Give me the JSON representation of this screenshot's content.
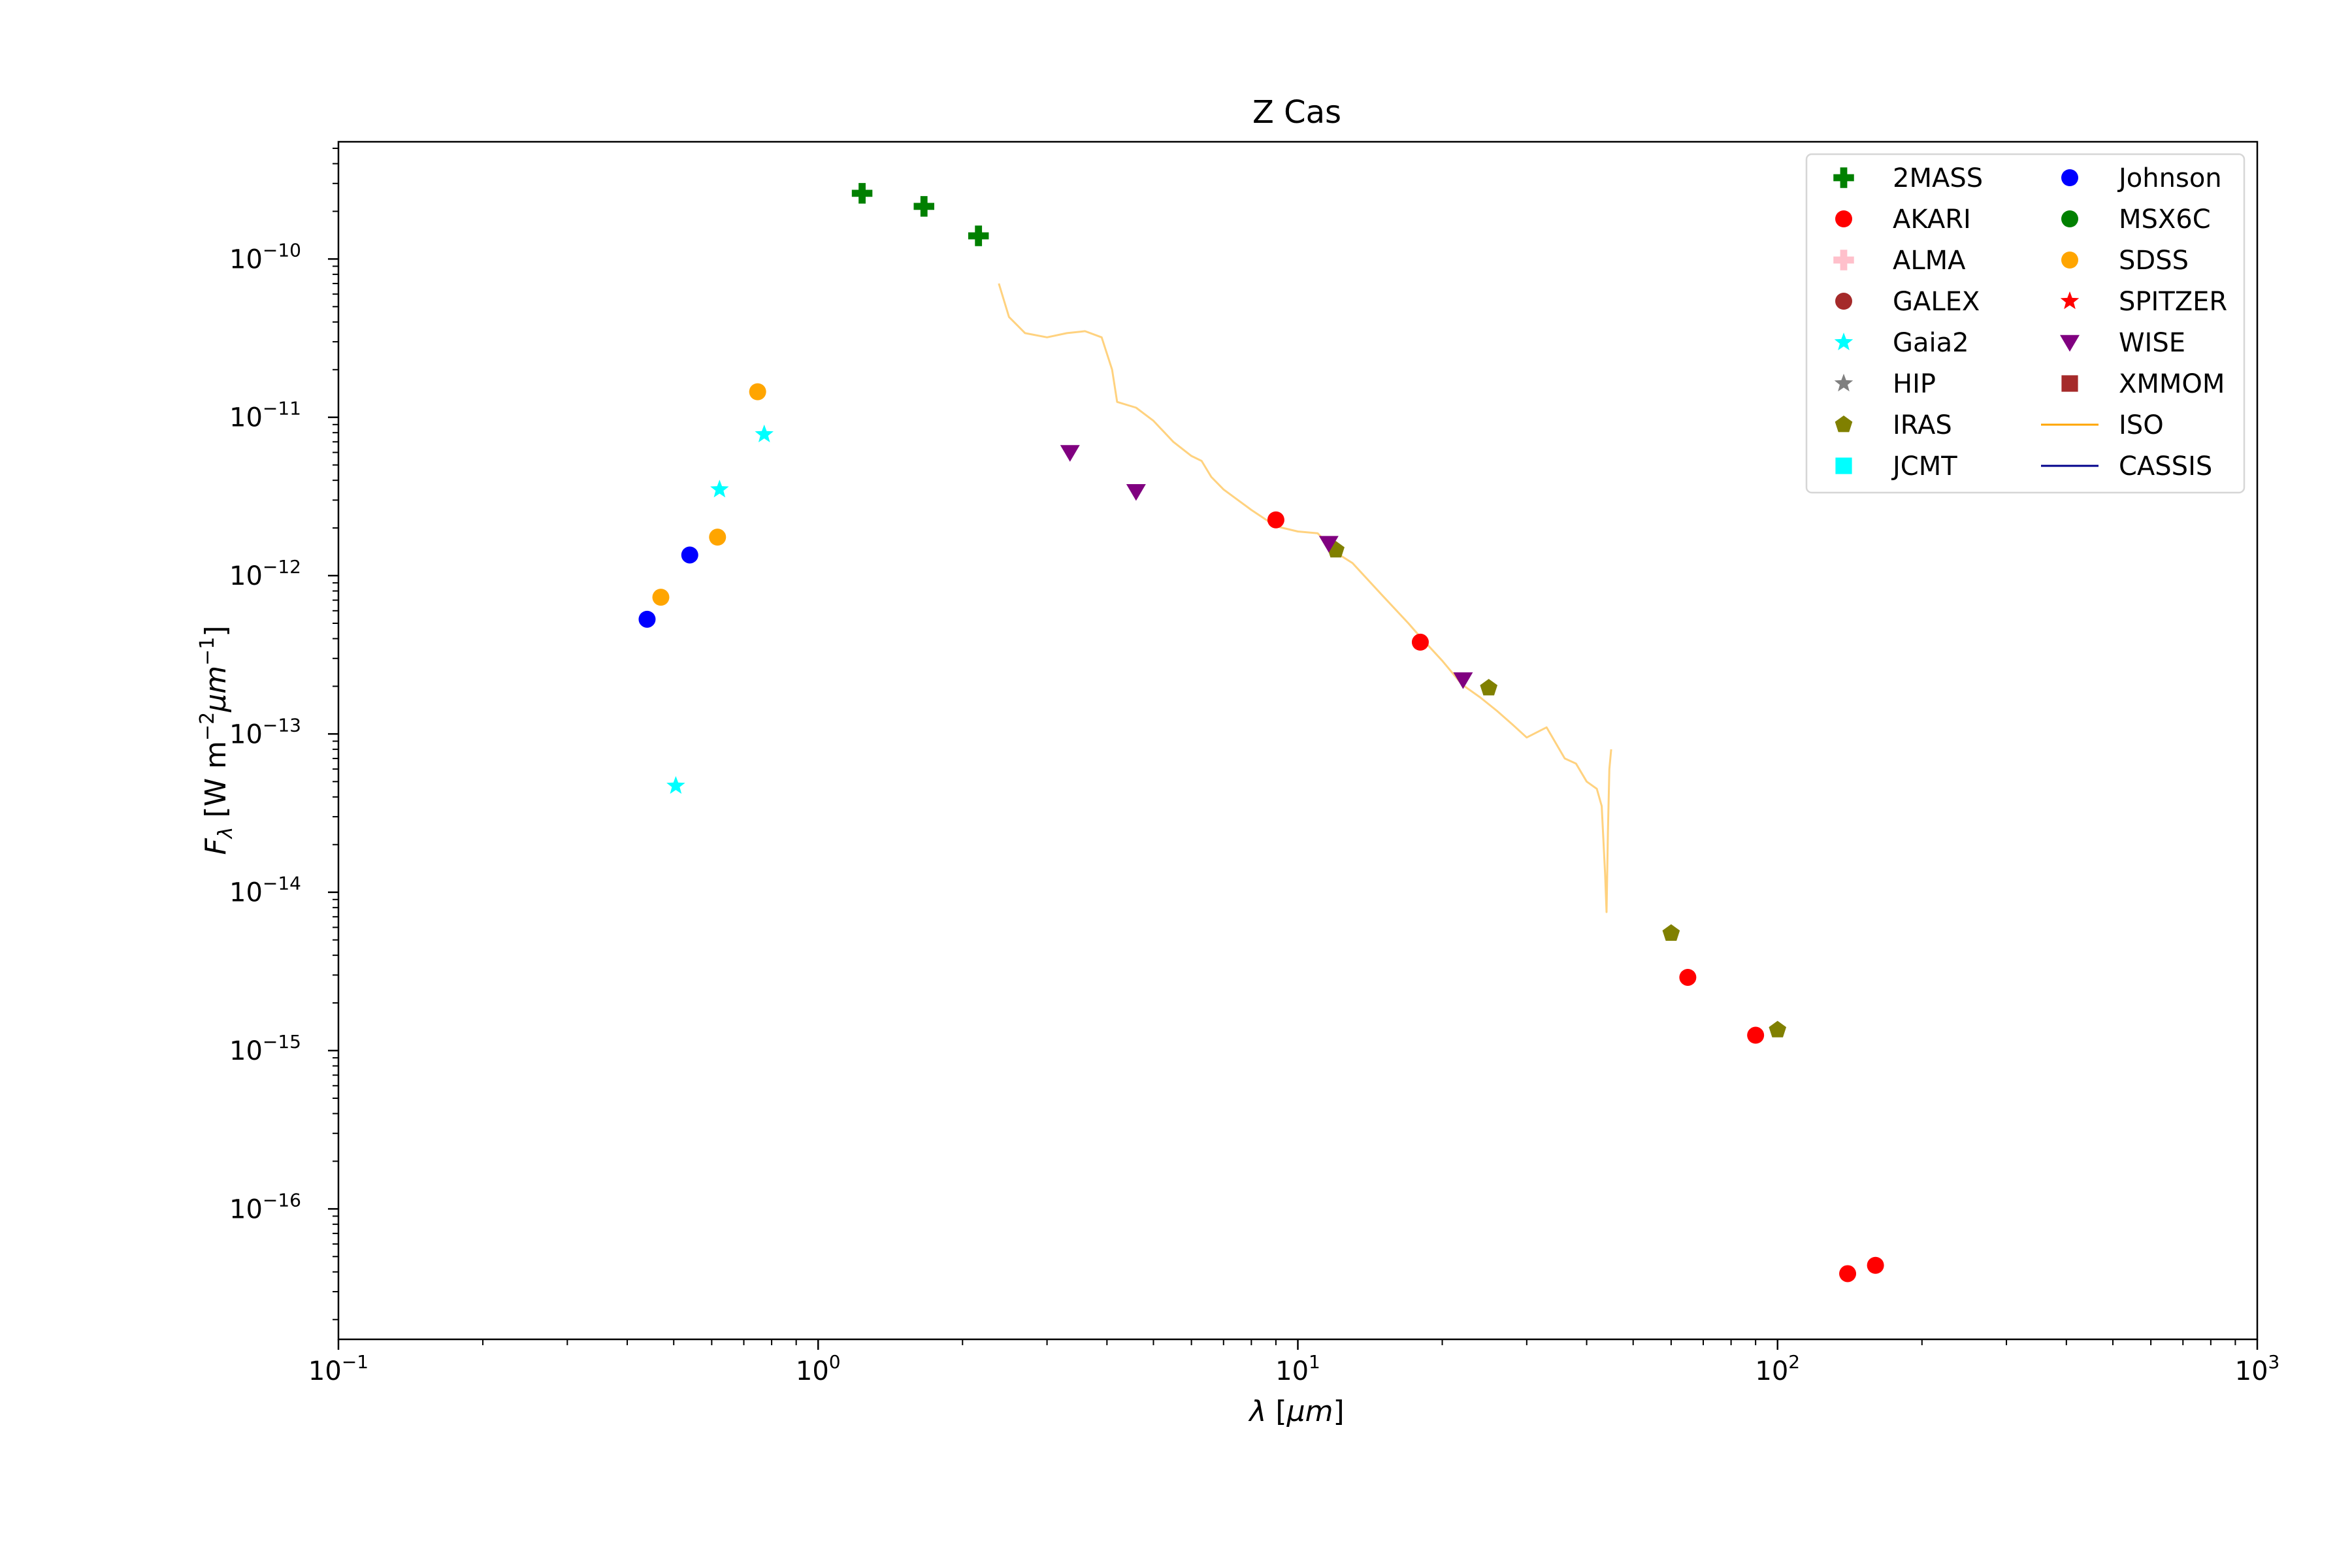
{
  "chart_data": {
    "type": "scatter",
    "title": "Z Cas",
    "xlabel": "λ [μm]",
    "ylabel": "F_λ [W m^-2 μm^-1]",
    "xscale": "log",
    "yscale": "log",
    "xlim": [
      0.1,
      1000
    ],
    "ylim": [
      1.5e-17,
      5.5e-10
    ],
    "grid": false,
    "legend_position": "top-right",
    "x_ticks": [
      {
        "value": 0.1,
        "base": "10",
        "exp": "−1"
      },
      {
        "value": 1,
        "base": "10",
        "exp": "0"
      },
      {
        "value": 10,
        "base": "10",
        "exp": "1"
      },
      {
        "value": 100,
        "base": "10",
        "exp": "2"
      },
      {
        "value": 1000,
        "base": "10",
        "exp": "3"
      }
    ],
    "y_ticks": [
      {
        "value": 1e-16,
        "base": "10",
        "exp": "−16"
      },
      {
        "value": 1e-15,
        "base": "10",
        "exp": "−15"
      },
      {
        "value": 1e-14,
        "base": "10",
        "exp": "−14"
      },
      {
        "value": 1e-13,
        "base": "10",
        "exp": "−13"
      },
      {
        "value": 1e-12,
        "base": "10",
        "exp": "−12"
      },
      {
        "value": 1e-11,
        "base": "10",
        "exp": "−11"
      },
      {
        "value": 1e-10,
        "base": "10",
        "exp": "−10"
      }
    ],
    "series": [
      {
        "name": "2MASS",
        "marker": "plus",
        "color": "#008000",
        "points": [
          [
            1.235,
            2.6e-10
          ],
          [
            1.662,
            2.15e-10
          ],
          [
            2.159,
            1.4e-10
          ]
        ]
      },
      {
        "name": "AKARI",
        "marker": "circle",
        "color": "#ff0000",
        "points": [
          [
            9.0,
            2.25e-12
          ],
          [
            18.0,
            3.8e-13
          ],
          [
            65.0,
            2.9e-15
          ],
          [
            90.0,
            1.25e-15
          ],
          [
            140.0,
            3.9e-17
          ],
          [
            160.0,
            4.4e-17
          ]
        ]
      },
      {
        "name": "ALMA",
        "marker": "plus",
        "color": "#ffc0cb",
        "points": []
      },
      {
        "name": "GALEX",
        "marker": "circle",
        "color": "#a52a2a",
        "points": []
      },
      {
        "name": "Gaia2",
        "marker": "star",
        "color": "#00ffff",
        "points": [
          [
            0.505,
            4.7e-14
          ],
          [
            0.623,
            3.5e-12
          ],
          [
            0.772,
            7.8e-12
          ]
        ]
      },
      {
        "name": "HIP",
        "marker": "star",
        "color": "#808080",
        "points": []
      },
      {
        "name": "IRAS",
        "marker": "pentagon",
        "color": "#808000",
        "points": [
          [
            12.0,
            1.45e-12
          ],
          [
            25.0,
            1.95e-13
          ],
          [
            60.0,
            5.5e-15
          ],
          [
            100.0,
            1.35e-15
          ]
        ]
      },
      {
        "name": "JCMT",
        "marker": "square",
        "color": "#00ffff",
        "points": []
      },
      {
        "name": "Johnson",
        "marker": "circle",
        "color": "#0000ff",
        "points": [
          [
            0.44,
            5.3e-13
          ],
          [
            0.54,
            1.35e-12
          ]
        ]
      },
      {
        "name": "MSX6C",
        "marker": "circle",
        "color": "#008000",
        "points": []
      },
      {
        "name": "SDSS",
        "marker": "circle",
        "color": "#ffa500",
        "points": [
          [
            0.47,
            7.3e-13
          ],
          [
            0.617,
            1.75e-12
          ],
          [
            0.748,
            1.45e-11
          ]
        ]
      },
      {
        "name": "SPITZER",
        "marker": "star",
        "color": "#ff0000",
        "points": []
      },
      {
        "name": "WISE",
        "marker": "triangle-down",
        "color": "#800080",
        "points": [
          [
            3.35,
            6e-12
          ],
          [
            4.6,
            3.4e-12
          ],
          [
            11.6,
            1.6e-12
          ],
          [
            22.1,
            2.2e-13
          ]
        ]
      },
      {
        "name": "XMMOM",
        "marker": "square",
        "color": "#a52a2a",
        "points": []
      },
      {
        "name": "ISO",
        "marker": "line",
        "color": "#ffa500",
        "points": [
          [
            2.38,
            7e-11
          ],
          [
            2.5,
            4.3e-11
          ],
          [
            2.7,
            3.4e-11
          ],
          [
            3.0,
            3.2e-11
          ],
          [
            3.3,
            3.4e-11
          ],
          [
            3.6,
            3.5e-11
          ],
          [
            3.9,
            3.2e-11
          ],
          [
            4.1,
            2e-11
          ],
          [
            4.2,
            1.25e-11
          ],
          [
            4.6,
            1.15e-11
          ],
          [
            5.0,
            9.5e-12
          ],
          [
            5.5,
            7e-12
          ],
          [
            6.0,
            5.7e-12
          ],
          [
            6.3,
            5.3e-12
          ],
          [
            6.6,
            4.2e-12
          ],
          [
            7.0,
            3.5e-12
          ],
          [
            8.0,
            2.6e-12
          ],
          [
            9.0,
            2.05e-12
          ],
          [
            10.0,
            1.9e-12
          ],
          [
            11.0,
            1.85e-12
          ],
          [
            12.0,
            1.4e-12
          ],
          [
            13.0,
            1.2e-12
          ],
          [
            15.0,
            7.5e-13
          ],
          [
            17.0,
            5e-13
          ],
          [
            18.0,
            4.1e-13
          ],
          [
            20.0,
            2.9e-13
          ],
          [
            22.0,
            2.05e-13
          ],
          [
            24.0,
            1.7e-13
          ],
          [
            26.0,
            1.4e-13
          ],
          [
            28.0,
            1.15e-13
          ],
          [
            30.0,
            9.5e-14
          ],
          [
            33.0,
            1.1e-13
          ],
          [
            36.0,
            7e-14
          ],
          [
            38.0,
            6.5e-14
          ],
          [
            40.0,
            5e-14
          ],
          [
            42.0,
            4.5e-14
          ],
          [
            43.0,
            3.5e-14
          ],
          [
            43.7,
            1.3e-14
          ],
          [
            44.0,
            7.5e-15
          ],
          [
            44.3,
            2.4e-14
          ],
          [
            44.6,
            6e-14
          ],
          [
            45.0,
            8e-14
          ]
        ]
      },
      {
        "name": "CASSIS",
        "marker": "line",
        "color": "#00008b",
        "points": []
      }
    ]
  }
}
